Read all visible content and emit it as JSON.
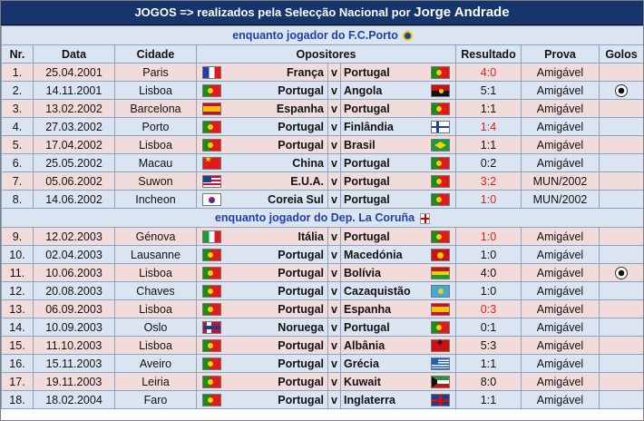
{
  "title": {
    "prefix": "JOGOS => realizados pela Selecção Nacional por",
    "name": "Jorge Andrade"
  },
  "sections": {
    "porto": "enquanto jogador do F.C.Porto",
    "corunha": "enquanto jogador do Dep. La Coruña"
  },
  "columns": [
    "Nr.",
    "Data",
    "Cidade",
    "Opositores",
    "Resultado",
    "Prova",
    "Golos"
  ],
  "vs": "v",
  "rows_porto": [
    {
      "nr": "1.",
      "date": "25.04.2001",
      "city": "Paris",
      "home": "França",
      "home_flag": "f-fr",
      "away": "Portugal",
      "away_flag": "f-pt",
      "result": "4:0",
      "red": true,
      "prova": "Amigável",
      "golo": false
    },
    {
      "nr": "2.",
      "date": "14.11.2001",
      "city": "Lisboa",
      "home": "Portugal",
      "home_flag": "f-pt",
      "away": "Angola",
      "away_flag": "f-ao",
      "result": "5:1",
      "red": false,
      "prova": "Amigável",
      "golo": true
    },
    {
      "nr": "3.",
      "date": "13.02.2002",
      "city": "Barcelona",
      "home": "Espanha",
      "home_flag": "f-es",
      "away": "Portugal",
      "away_flag": "f-pt",
      "result": "1:1",
      "red": false,
      "prova": "Amigável",
      "golo": false
    },
    {
      "nr": "4.",
      "date": "27.03.2002",
      "city": "Porto",
      "home": "Portugal",
      "home_flag": "f-pt",
      "away": "Finlândia",
      "away_flag": "f-fi",
      "result": "1:4",
      "red": true,
      "prova": "Amigável",
      "golo": false
    },
    {
      "nr": "5.",
      "date": "17.04.2002",
      "city": "Lisboa",
      "home": "Portugal",
      "home_flag": "f-pt",
      "away": "Brasil",
      "away_flag": "f-br",
      "result": "1:1",
      "red": false,
      "prova": "Amigável",
      "golo": false
    },
    {
      "nr": "6.",
      "date": "25.05.2002",
      "city": "Macau",
      "home": "China",
      "home_flag": "f-cn",
      "away": "Portugal",
      "away_flag": "f-pt",
      "result": "0:2",
      "red": false,
      "prova": "Amigável",
      "golo": false
    },
    {
      "nr": "7.",
      "date": "05.06.2002",
      "city": "Suwon",
      "home": "E.U.A.",
      "home_flag": "f-us",
      "away": "Portugal",
      "away_flag": "f-pt",
      "result": "3:2",
      "red": true,
      "prova": "MUN/2002",
      "golo": false
    },
    {
      "nr": "8.",
      "date": "14.06.2002",
      "city": "Incheon",
      "home": "Coreia Sul",
      "home_flag": "f-kr",
      "away": "Portugal",
      "away_flag": "f-pt",
      "result": "1:0",
      "red": true,
      "prova": "MUN/2002",
      "golo": false
    }
  ],
  "rows_corunha": [
    {
      "nr": "9.",
      "date": "12.02.2003",
      "city": "Génova",
      "home": "Itália",
      "home_flag": "f-it",
      "away": "Portugal",
      "away_flag": "f-pt",
      "result": "1:0",
      "red": true,
      "prova": "Amigável",
      "golo": false
    },
    {
      "nr": "10.",
      "date": "02.04.2003",
      "city": "Lausanne",
      "home": "Portugal",
      "home_flag": "f-pt",
      "away": "Macedónia",
      "away_flag": "f-mk",
      "result": "1:0",
      "red": false,
      "prova": "Amigável",
      "golo": false
    },
    {
      "nr": "11.",
      "date": "10.06.2003",
      "city": "Lisboa",
      "home": "Portugal",
      "home_flag": "f-pt",
      "away": "Bolívia",
      "away_flag": "f-bo",
      "result": "4:0",
      "red": false,
      "prova": "Amigável",
      "golo": true
    },
    {
      "nr": "12.",
      "date": "20.08.2003",
      "city": "Chaves",
      "home": "Portugal",
      "home_flag": "f-pt",
      "away": "Cazaquistão",
      "away_flag": "f-kz",
      "result": "1:0",
      "red": false,
      "prova": "Amigável",
      "golo": false
    },
    {
      "nr": "13.",
      "date": "06.09.2003",
      "city": "Lisboa",
      "home": "Portugal",
      "home_flag": "f-pt",
      "away": "Espanha",
      "away_flag": "f-es",
      "result": "0:3",
      "red": true,
      "prova": "Amigável",
      "golo": false
    },
    {
      "nr": "14.",
      "date": "10.09.2003",
      "city": "Oslo",
      "home": "Noruega",
      "home_flag": "f-no",
      "away": "Portugal",
      "away_flag": "f-pt",
      "result": "0:1",
      "red": false,
      "prova": "Amigável",
      "golo": false
    },
    {
      "nr": "15.",
      "date": "11.10.2003",
      "city": "Lisboa",
      "home": "Portugal",
      "home_flag": "f-pt",
      "away": "Albânia",
      "away_flag": "f-al",
      "result": "5:3",
      "red": false,
      "prova": "Amigável",
      "golo": false
    },
    {
      "nr": "16.",
      "date": "15.11.2003",
      "city": "Aveiro",
      "home": "Portugal",
      "home_flag": "f-pt",
      "away": "Grécia",
      "away_flag": "f-gr",
      "result": "1:1",
      "red": false,
      "prova": "Amigável",
      "golo": false
    },
    {
      "nr": "17.",
      "date": "19.11.2003",
      "city": "Leiria",
      "home": "Portugal",
      "home_flag": "f-pt",
      "away": "Kuwait",
      "away_flag": "f-kw",
      "result": "8:0",
      "red": false,
      "prova": "Amigável",
      "golo": false
    },
    {
      "nr": "18.",
      "date": "18.02.2004",
      "city": "Faro",
      "home": "Portugal",
      "home_flag": "f-pt",
      "away": "Inglaterra",
      "away_flag": "f-gb",
      "result": "1:1",
      "red": false,
      "prova": "Amigável",
      "golo": false
    }
  ]
}
